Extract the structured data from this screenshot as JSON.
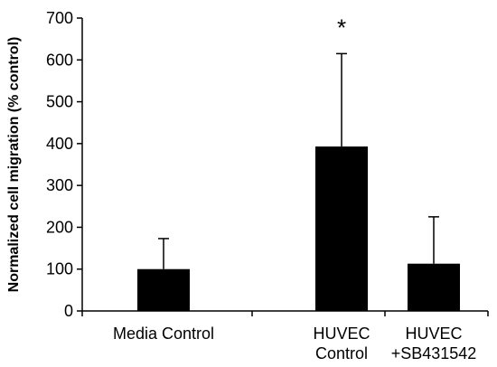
{
  "chart_data": {
    "type": "bar",
    "categories": [
      [
        "Media Control"
      ],
      [
        "HUVEC",
        "Control"
      ],
      [
        "HUVEC",
        "+SB431542"
      ]
    ],
    "values": [
      100,
      393,
      113
    ],
    "errors_upper": [
      73,
      222,
      112
    ],
    "annotations": [
      "",
      "*",
      ""
    ],
    "ylabel": "Normalized cell migration (% control)",
    "xlabel": "",
    "title": "",
    "ylim": [
      0,
      700
    ],
    "yticks": [
      0,
      100,
      200,
      300,
      400,
      500,
      600,
      700
    ],
    "grid": false,
    "legend": "none",
    "colors": {
      "bar": "#000000",
      "axis": "#000000",
      "error_bar": "#000000",
      "background": "#ffffff"
    }
  }
}
